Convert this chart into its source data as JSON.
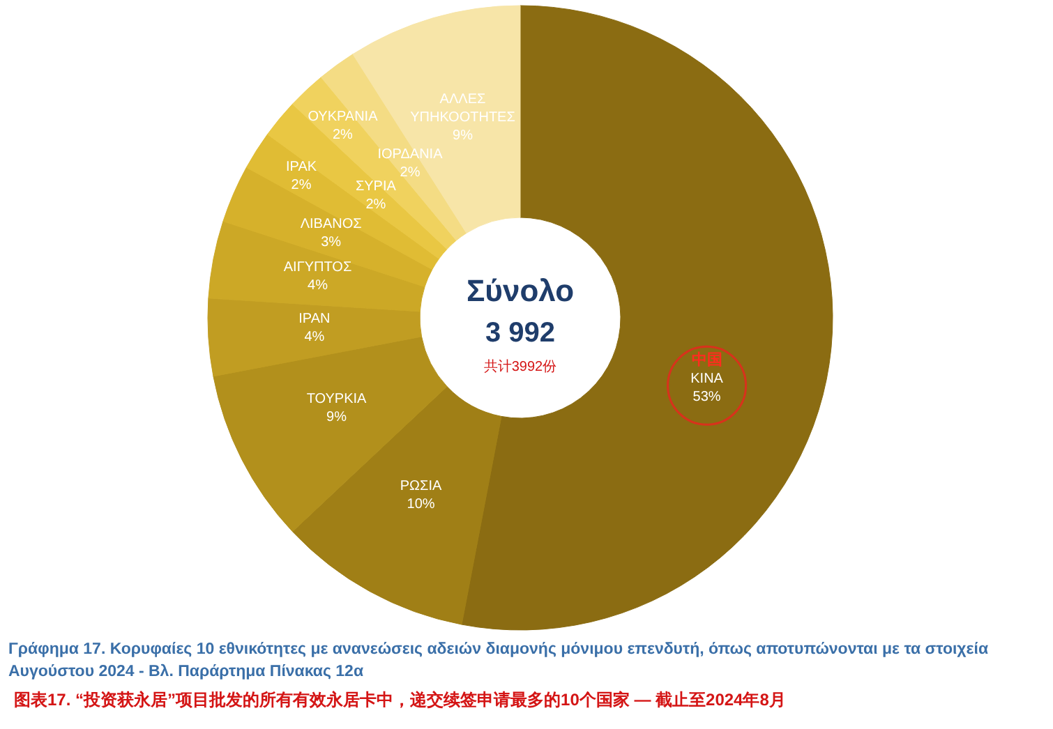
{
  "chart_data": {
    "type": "donut",
    "categories": [
      "ΚΙΝΑ",
      "ΡΩΣΙΑ",
      "ΤΟΥΡΚΙΑ",
      "ΙΡΑΝ",
      "ΑΙΓΥΠΤΟΣ",
      "ΛΙΒΑΝΟΣ",
      "ΙΡΑΚ",
      "ΣΥΡΙΑ",
      "ΟΥΚΡΑΝΙΑ",
      "ΙΟΡΔΑΝΙΑ",
      "ΑΛΛΕΣ ΥΠΗΚΟΟΤΗΤΕΣ"
    ],
    "values": [
      53,
      10,
      9,
      4,
      4,
      3,
      2,
      2,
      2,
      2,
      9
    ],
    "colors": [
      "#8b6c12",
      "#a07f16",
      "#b2901c",
      "#c19d22",
      "#cca826",
      "#d6b12b",
      "#e0bc34",
      "#e9c743",
      "#f0d25e",
      "#f4dc84",
      "#f7e5a8"
    ],
    "value_labels": [
      "53%",
      "10%",
      "9%",
      "4%",
      "4%",
      "3%",
      "2%",
      "2%",
      "2%",
      "2%",
      "9%"
    ],
    "annotations": [
      "Σύνολο",
      "3 992",
      "共计3992份",
      "Γράφημα 17. Κορυφαίες 10 εθνικότητες με ανανεώσεις αδειών διαμονής μόνιμου επενδυτή, όπως αποτυπώνονται με τα στοιχεία Αυγούστου 2024 - Βλ. Παράρτημα Πίνακας 12α",
      "图表17.  “投资获永居”项目批发的所有有效永居卡中，递交续签申请最多的10个国家 — 截止至2024年8月",
      "中国"
    ]
  }
}
